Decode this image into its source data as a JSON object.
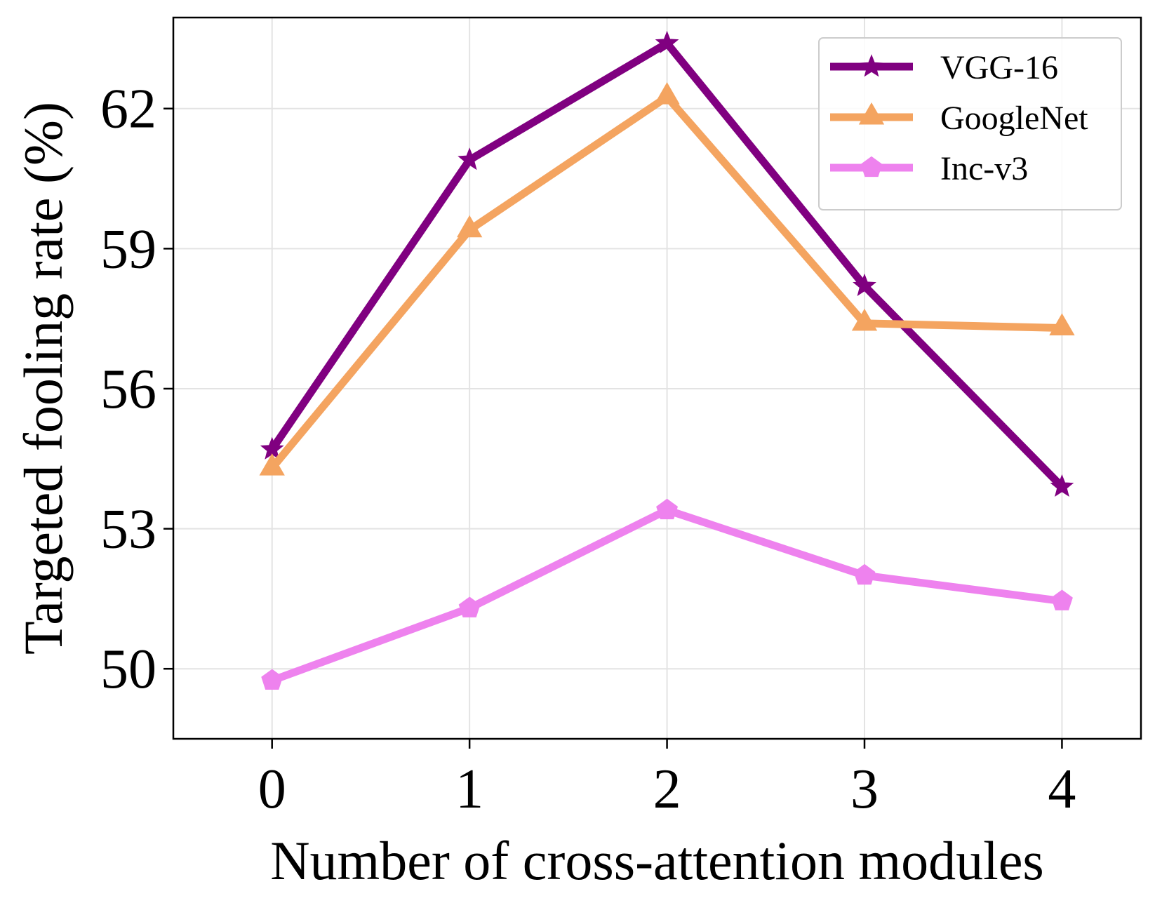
{
  "chart_data": {
    "type": "line",
    "title": "",
    "xlabel": "Number of cross-attention modules",
    "ylabel": "Targeted fooling rate (%)",
    "x": [
      0,
      1,
      2,
      3,
      4
    ],
    "xticks": [
      "0",
      "1",
      "2",
      "3",
      "4"
    ],
    "yticks": [
      50,
      53,
      56,
      59,
      62
    ],
    "xlim": [
      -0.5,
      4.4
    ],
    "ylim": [
      48.5,
      63.95
    ],
    "grid": true,
    "legend_position": "top-right",
    "series": [
      {
        "name": "VGG-16",
        "values": [
          54.7,
          60.9,
          63.4,
          58.2,
          53.9
        ],
        "color": "#800080",
        "marker": "star"
      },
      {
        "name": "GoogleNet",
        "values": [
          54.3,
          59.4,
          62.25,
          57.4,
          57.3
        ],
        "color": "#F4A460",
        "marker": "triangle"
      },
      {
        "name": "Inc-v3",
        "values": [
          49.75,
          51.3,
          53.4,
          52.0,
          51.45
        ],
        "color": "#EE82EE",
        "marker": "pentagon"
      }
    ]
  }
}
